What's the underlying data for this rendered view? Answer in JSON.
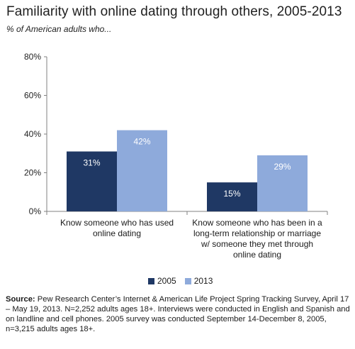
{
  "header": {
    "title": "Familiarity with online dating through others, 2005-2013",
    "subtitle": "% of American adults who..."
  },
  "colors": {
    "series_2005": "#1f3864",
    "series_2013": "#8eaadb",
    "label_2005": "#ffffff",
    "label_2013": "#ffffff",
    "axis": "#808080"
  },
  "chart_data": {
    "type": "bar",
    "categories": [
      [
        "Know someone who has used",
        "online dating"
      ],
      [
        "Know someone who has been in a",
        "long-term relationship or marriage",
        "w/ someone they met through",
        "online dating"
      ]
    ],
    "series": [
      {
        "name": "2005",
        "values": [
          31,
          15
        ],
        "labels": [
          "31%",
          "15%"
        ]
      },
      {
        "name": "2013",
        "values": [
          42,
          29
        ],
        "labels": [
          "42%",
          "29%"
        ]
      }
    ],
    "ylim": [
      0,
      80
    ],
    "yticks": [
      0,
      20,
      40,
      60,
      80
    ],
    "ytick_labels": [
      "0%",
      "20%",
      "40%",
      "60%",
      "80%"
    ],
    "grid": false,
    "legend": "bottom-center"
  },
  "source": {
    "label": "Source:",
    "text": " Pew Research Center’s Internet & American Life Project Spring Tracking Survey, April 17 – May 19, 2013. N=2,252 adults ages 18+. Interviews were conducted in English and Spanish and on landline and cell phones.  2005 survey was conducted September 14-December 8, 2005, n=3,215 adults ages 18+."
  }
}
